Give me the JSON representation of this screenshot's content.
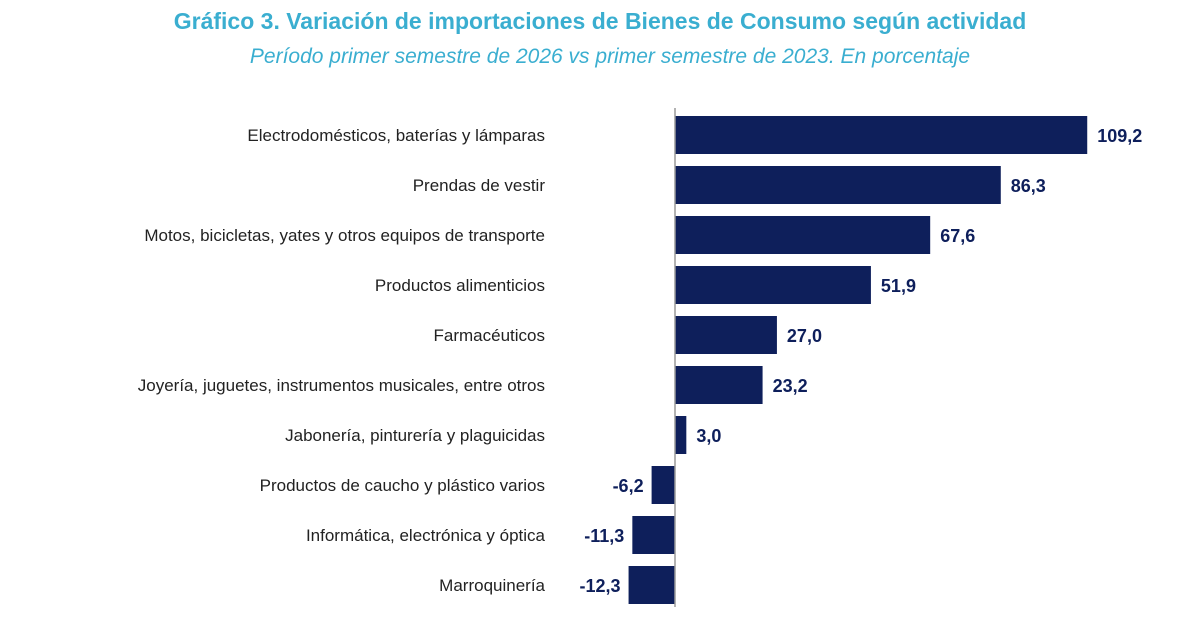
{
  "title": "Gráfico 3. Variación de importaciones de Bienes de Consumo según actividad",
  "subtitle": "Período primer semestre de 2026 vs primer semestre de 2023. En porcentaje",
  "colors": {
    "title": "#3aaed0",
    "bar": "#0e1f5b",
    "axis": "#9a9a9a",
    "value_label": "#0e1f5b",
    "category_label": "#222222"
  },
  "chart_data": {
    "type": "bar",
    "orientation": "horizontal",
    "title": "Gráfico 3. Variación de importaciones de Bienes de Consumo según actividad",
    "subtitle": "Período primer semestre de 2026 vs primer semestre de 2023. En porcentaje",
    "categories": [
      "Electrodomésticos, baterías y lámparas",
      "Prendas de vestir",
      "Motos, bicicletas, yates y otros equipos de transporte",
      "Productos alimenticios",
      "Farmacéuticos",
      "Joyería, juguetes, instrumentos musicales, entre otros",
      "Jabonería, pinturería y plaguicidas",
      "Productos de caucho y plástico varios",
      "Informática, electrónica y óptica",
      "Marroquinería"
    ],
    "values": [
      109.2,
      86.3,
      67.6,
      51.9,
      27.0,
      23.2,
      3.0,
      -6.2,
      -11.3,
      -12.3
    ],
    "value_labels": [
      "109,2",
      "86,3",
      "67,6",
      "51,9",
      "27,0",
      "23,2",
      "3,0",
      "-6,2",
      "-11,3",
      "-12,3"
    ],
    "xlabel": "",
    "ylabel": "",
    "xlim": [
      -13,
      110
    ],
    "grid": false,
    "legend": "none"
  }
}
